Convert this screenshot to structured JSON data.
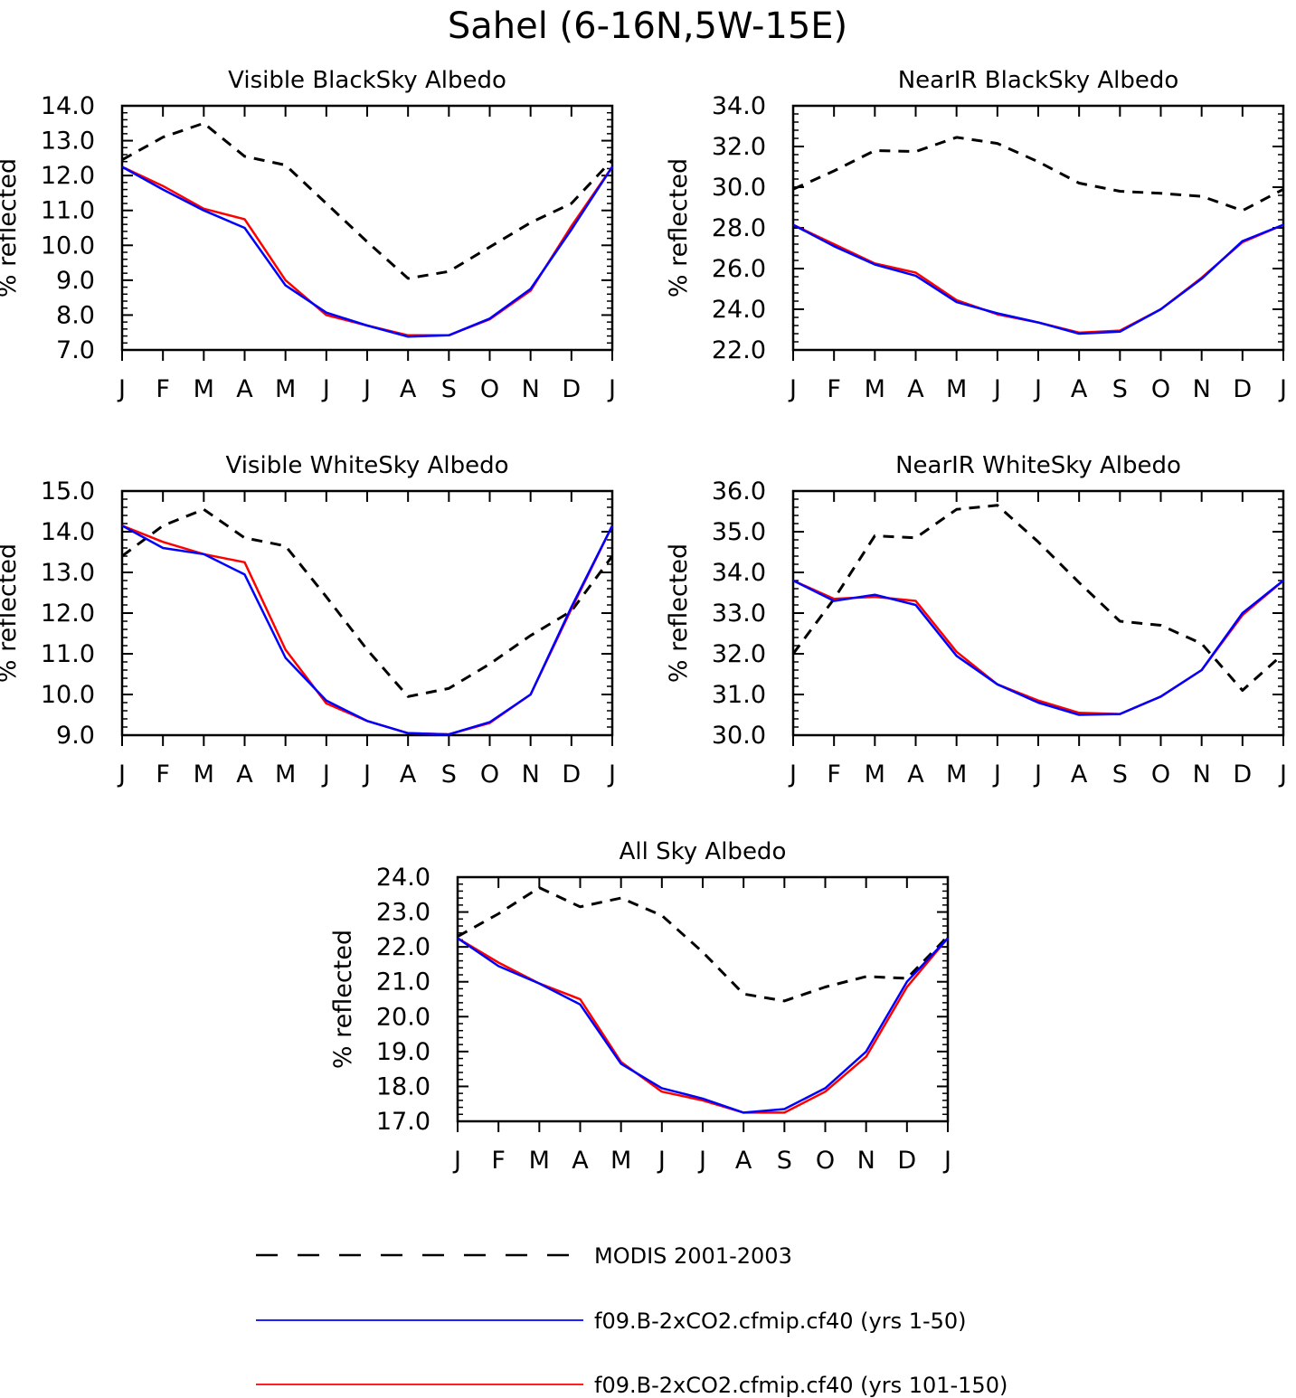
{
  "title": "Sahel (6-16N,5W-15E)",
  "legend": {
    "position": "bottom",
    "entries": [
      {
        "label": "MODIS 2001-2003",
        "color": "#000000",
        "style": "dashed"
      },
      {
        "label": "f09.B-2xCO2.cfmip.cf40 (yrs 1-50)",
        "color": "#0000ff",
        "style": "solid"
      },
      {
        "label": "f09.B-2xCO2.cfmip.cf40 (yrs 101-150)",
        "color": "#ff0000",
        "style": "solid"
      }
    ]
  },
  "chart_data": [
    {
      "type": "line",
      "title": "Visible BlackSky Albedo",
      "ylabel": "% reflected",
      "ylim": [
        7.0,
        14.0
      ],
      "yticks": [
        "7.0",
        "8.0",
        "9.0",
        "10.0",
        "11.0",
        "12.0",
        "13.0",
        "14.0"
      ],
      "categories": [
        "J",
        "F",
        "M",
        "A",
        "M",
        "J",
        "J",
        "A",
        "S",
        "O",
        "N",
        "D",
        "J"
      ],
      "series": [
        {
          "name": "MODIS 2001-2003",
          "color": "#000000",
          "dash": true,
          "values": [
            12.45,
            13.1,
            13.5,
            12.55,
            12.3,
            11.2,
            10.1,
            9.05,
            9.25,
            9.95,
            10.65,
            11.2,
            12.45
          ]
        },
        {
          "name": "f09.B-2xCO2.cfmip.cf40 (yrs 101-150)",
          "color": "#ff0000",
          "dash": false,
          "values": [
            12.25,
            11.7,
            11.05,
            10.75,
            9.0,
            8.0,
            7.7,
            7.42,
            7.42,
            7.88,
            8.7,
            10.55,
            12.25
          ]
        },
        {
          "name": "f09.B-2xCO2.cfmip.cf40 (yrs 1-50)",
          "color": "#0000ff",
          "dash": false,
          "values": [
            12.25,
            11.6,
            11.0,
            10.5,
            8.85,
            8.07,
            7.7,
            7.38,
            7.42,
            7.9,
            8.75,
            10.45,
            12.25
          ]
        }
      ]
    },
    {
      "type": "line",
      "title": "NearIR BlackSky Albedo",
      "ylabel": "% reflected",
      "ylim": [
        22.0,
        34.0
      ],
      "yticks": [
        "22.0",
        "24.0",
        "26.0",
        "28.0",
        "30.0",
        "32.0",
        "34.0"
      ],
      "categories": [
        "J",
        "F",
        "M",
        "A",
        "M",
        "J",
        "J",
        "A",
        "S",
        "O",
        "N",
        "D",
        "J"
      ],
      "series": [
        {
          "name": "MODIS 2001-2003",
          "color": "#000000",
          "dash": true,
          "values": [
            29.9,
            30.8,
            31.8,
            31.75,
            32.45,
            32.15,
            31.25,
            30.2,
            29.8,
            29.7,
            29.55,
            28.85,
            29.9
          ]
        },
        {
          "name": "f09.B-2xCO2.cfmip.cf40 (yrs 101-150)",
          "color": "#ff0000",
          "dash": false,
          "values": [
            28.15,
            27.2,
            26.25,
            25.8,
            24.45,
            23.75,
            23.35,
            22.85,
            22.95,
            24.0,
            25.55,
            27.3,
            28.15
          ]
        },
        {
          "name": "f09.B-2xCO2.cfmip.cf40 (yrs 1-50)",
          "color": "#0000ff",
          "dash": false,
          "values": [
            28.15,
            27.1,
            26.2,
            25.65,
            24.35,
            23.8,
            23.35,
            22.8,
            22.9,
            24.0,
            25.5,
            27.35,
            28.15
          ]
        }
      ]
    },
    {
      "type": "line",
      "title": "Visible WhiteSky Albedo",
      "ylabel": "% reflected",
      "ylim": [
        9.0,
        15.0
      ],
      "yticks": [
        "9.0",
        "10.0",
        "11.0",
        "12.0",
        "13.0",
        "14.0",
        "15.0"
      ],
      "categories": [
        "J",
        "F",
        "M",
        "A",
        "M",
        "J",
        "J",
        "A",
        "S",
        "O",
        "N",
        "D",
        "J"
      ],
      "series": [
        {
          "name": "MODIS 2001-2003",
          "color": "#000000",
          "dash": true,
          "values": [
            13.4,
            14.15,
            14.55,
            13.85,
            13.65,
            12.4,
            11.1,
            9.95,
            10.15,
            10.75,
            11.45,
            12.05,
            13.4
          ]
        },
        {
          "name": "f09.B-2xCO2.cfmip.cf40 (yrs 101-150)",
          "color": "#ff0000",
          "dash": false,
          "values": [
            14.15,
            13.75,
            13.45,
            13.25,
            11.1,
            9.78,
            9.35,
            9.05,
            9.02,
            9.3,
            10.0,
            12.1,
            14.15
          ]
        },
        {
          "name": "f09.B-2xCO2.cfmip.cf40 (yrs 1-50)",
          "color": "#0000ff",
          "dash": false,
          "values": [
            14.15,
            13.6,
            13.45,
            12.95,
            10.9,
            9.85,
            9.35,
            9.05,
            9.02,
            9.32,
            10.0,
            12.15,
            14.15
          ]
        }
      ]
    },
    {
      "type": "line",
      "title": "NearIR WhiteSky Albedo",
      "ylabel": "% reflected",
      "ylim": [
        30.0,
        36.0
      ],
      "yticks": [
        "30.0",
        "31.0",
        "32.0",
        "33.0",
        "34.0",
        "35.0",
        "36.0"
      ],
      "categories": [
        "J",
        "F",
        "M",
        "A",
        "M",
        "J",
        "J",
        "A",
        "S",
        "O",
        "N",
        "D",
        "J"
      ],
      "series": [
        {
          "name": "MODIS 2001-2003",
          "color": "#000000",
          "dash": true,
          "values": [
            32.0,
            33.35,
            34.9,
            34.85,
            35.55,
            35.65,
            34.75,
            33.75,
            32.8,
            32.7,
            32.25,
            31.1,
            32.0
          ]
        },
        {
          "name": "f09.B-2xCO2.cfmip.cf40 (yrs 101-150)",
          "color": "#ff0000",
          "dash": false,
          "values": [
            33.8,
            33.35,
            33.4,
            33.3,
            32.05,
            31.25,
            30.85,
            30.55,
            30.52,
            30.95,
            31.6,
            32.95,
            33.8
          ]
        },
        {
          "name": "f09.B-2xCO2.cfmip.cf40 (yrs 1-50)",
          "color": "#0000ff",
          "dash": false,
          "values": [
            33.8,
            33.3,
            33.45,
            33.2,
            31.95,
            31.25,
            30.8,
            30.5,
            30.52,
            30.95,
            31.6,
            33.0,
            33.8
          ]
        }
      ]
    },
    {
      "type": "line",
      "title": "All Sky Albedo",
      "ylabel": "% reflected",
      "ylim": [
        17.0,
        24.0
      ],
      "yticks": [
        "17.0",
        "18.0",
        "19.0",
        "20.0",
        "21.0",
        "22.0",
        "23.0",
        "24.0"
      ],
      "categories": [
        "J",
        "F",
        "M",
        "A",
        "M",
        "J",
        "J",
        "A",
        "S",
        "O",
        "N",
        "D",
        "J"
      ],
      "series": [
        {
          "name": "MODIS 2001-2003",
          "color": "#000000",
          "dash": true,
          "values": [
            22.3,
            22.95,
            23.7,
            23.15,
            23.4,
            22.9,
            21.85,
            20.65,
            20.45,
            20.85,
            21.15,
            21.1,
            22.3
          ]
        },
        {
          "name": "f09.B-2xCO2.cfmip.cf40 (yrs 101-150)",
          "color": "#ff0000",
          "dash": false,
          "values": [
            22.25,
            21.55,
            20.95,
            20.5,
            18.7,
            17.85,
            17.6,
            17.25,
            17.25,
            17.85,
            18.85,
            20.85,
            22.25
          ]
        },
        {
          "name": "f09.B-2xCO2.cfmip.cf40 (yrs 1-50)",
          "color": "#0000ff",
          "dash": false,
          "values": [
            22.25,
            21.45,
            20.95,
            20.35,
            18.65,
            17.95,
            17.65,
            17.25,
            17.35,
            17.95,
            19.0,
            21.0,
            22.25
          ]
        }
      ]
    }
  ]
}
